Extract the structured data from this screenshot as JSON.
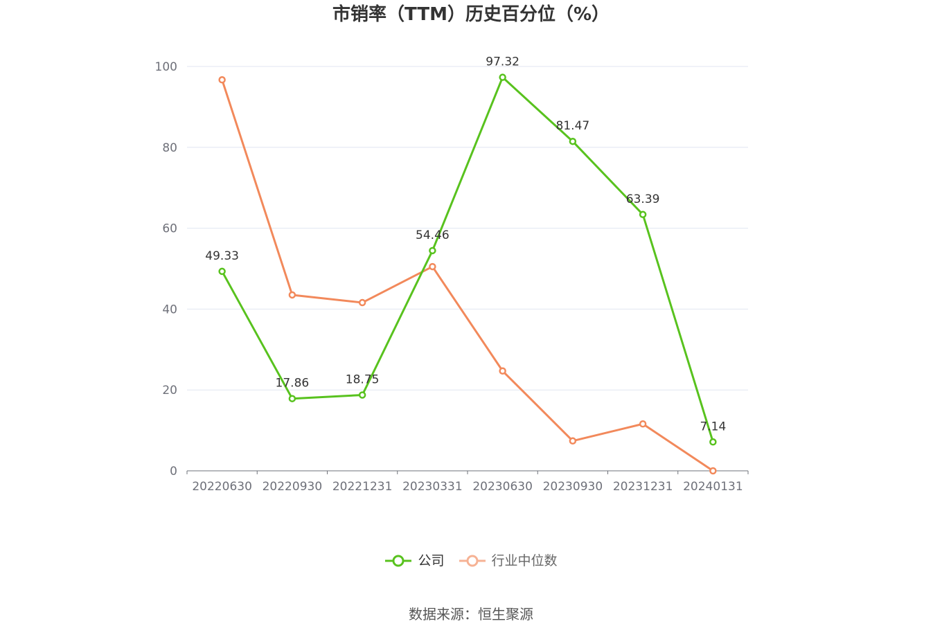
{
  "chart_data": {
    "type": "line",
    "title": "市销率（TTM）历史百分位（%）",
    "categories": [
      "20220630",
      "20220930",
      "20221231",
      "20230331",
      "20230630",
      "20230930",
      "20231231",
      "20240131"
    ],
    "ylim": [
      0,
      100
    ],
    "yticks": [
      0,
      20,
      40,
      60,
      80,
      100
    ],
    "grid": true,
    "legend_position": "bottom",
    "series": [
      {
        "name": "公司",
        "color": "#58c21e",
        "show_labels": true,
        "values": [
          49.33,
          17.86,
          18.75,
          54.46,
          97.32,
          81.47,
          63.39,
          7.14
        ]
      },
      {
        "name": "行业中位数",
        "color": "#f2895b",
        "show_labels": false,
        "values": [
          96.7,
          43.5,
          41.6,
          50.5,
          24.7,
          7.4,
          11.6,
          0
        ]
      }
    ]
  },
  "source": "数据来源：恒生聚源"
}
